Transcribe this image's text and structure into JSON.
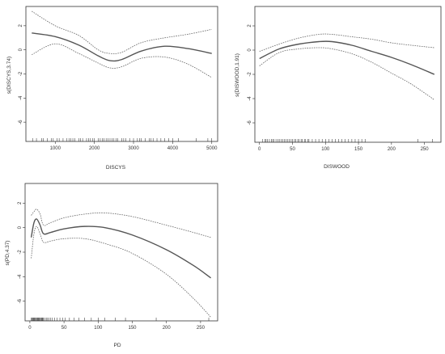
{
  "chart_data": [
    {
      "type": "line",
      "xlabel": "DISCYS",
      "ylabel": "s(DISCYS,3.74)",
      "xlim": [
        250,
        5150
      ],
      "ylim": [
        -7.6,
        3.6
      ],
      "xticks": [
        1000,
        2000,
        3000,
        4000,
        5000
      ],
      "yticks": [
        2,
        0,
        -2,
        -4,
        -6
      ],
      "series": [
        {
          "style": "solid",
          "x": [
            400,
            1000,
            1600,
            2100,
            2400,
            2700,
            3200,
            3800,
            4400,
            5000
          ],
          "y": [
            1.4,
            1.1,
            0.4,
            -0.5,
            -0.9,
            -0.8,
            -0.1,
            0.3,
            0.1,
            -0.3
          ]
        },
        {
          "style": "dashed",
          "x": [
            400,
            1000,
            1600,
            2100,
            2400,
            2700,
            3200,
            3800,
            4400,
            5000
          ],
          "y": [
            3.2,
            2.0,
            1.2,
            0.0,
            -0.3,
            -0.2,
            0.6,
            1.0,
            1.3,
            1.7
          ]
        },
        {
          "style": "dashed",
          "x": [
            400,
            1000,
            1600,
            2100,
            2400,
            2700,
            3200,
            3800,
            4400,
            5000
          ],
          "y": [
            -0.4,
            0.5,
            -0.3,
            -1.1,
            -1.5,
            -1.4,
            -0.7,
            -0.6,
            -1.2,
            -2.3
          ]
        }
      ],
      "rug": [
        420,
        520,
        650,
        700,
        800,
        900,
        950,
        1050,
        1100,
        1200,
        1300,
        1350,
        1400,
        1450,
        1500,
        1600,
        1650,
        1700,
        1800,
        1850,
        1900,
        1950,
        2000,
        2100,
        2150,
        2200,
        2250,
        2300,
        2350,
        2400,
        2450,
        2500,
        2550,
        2600,
        2700,
        2750,
        2800,
        2900,
        3000,
        3100,
        3150,
        3200,
        3300,
        3400,
        3450,
        3500,
        3600,
        3700,
        3800,
        3900,
        4000,
        4150,
        4600,
        4900,
        5000
      ]
    },
    {
      "type": "line",
      "xlabel": "DISWOOD",
      "ylabel": "s(DISWOOD,1.91)",
      "xlim": [
        -7,
        275
      ],
      "ylim": [
        -7.6,
        3.6
      ],
      "xticks": [
        0,
        50,
        100,
        150,
        200,
        250
      ],
      "yticks": [
        2,
        0,
        -2,
        -4,
        -6
      ],
      "series": [
        {
          "style": "solid",
          "x": [
            0,
            30,
            60,
            90,
            110,
            140,
            170,
            200,
            230,
            265
          ],
          "y": [
            -0.7,
            0.1,
            0.5,
            0.7,
            0.7,
            0.4,
            -0.1,
            -0.6,
            -1.2,
            -2.0
          ]
        },
        {
          "style": "dashed",
          "x": [
            0,
            30,
            60,
            90,
            110,
            140,
            170,
            200,
            230,
            265
          ],
          "y": [
            -0.1,
            0.5,
            1.0,
            1.3,
            1.3,
            1.1,
            0.9,
            0.6,
            0.4,
            0.2
          ]
        },
        {
          "style": "dashed",
          "x": [
            0,
            30,
            60,
            90,
            110,
            140,
            170,
            200,
            230,
            265
          ],
          "y": [
            -1.3,
            -0.2,
            0.1,
            0.2,
            0.1,
            -0.3,
            -1.0,
            -1.9,
            -2.8,
            -4.1
          ]
        }
      ],
      "rug": [
        5,
        8,
        10,
        12,
        15,
        18,
        20,
        22,
        25,
        28,
        30,
        33,
        35,
        38,
        40,
        43,
        45,
        48,
        50,
        53,
        55,
        58,
        60,
        63,
        65,
        68,
        70,
        73,
        75,
        80,
        85,
        90,
        95,
        100,
        105,
        110,
        115,
        120,
        125,
        130,
        135,
        140,
        145,
        150,
        155,
        160,
        240,
        262
      ]
    },
    {
      "type": "line",
      "xlabel": "PD",
      "ylabel": "s(PD,4.37)",
      "xlim": [
        -7,
        275
      ],
      "ylim": [
        -7.6,
        3.6
      ],
      "xticks": [
        0,
        50,
        100,
        150,
        200,
        250
      ],
      "yticks": [
        2,
        0,
        -2,
        -4,
        -6
      ],
      "series": [
        {
          "style": "solid",
          "x": [
            2,
            6,
            10,
            15,
            20,
            30,
            50,
            80,
            110,
            150,
            200,
            240,
            265
          ],
          "y": [
            -0.8,
            0.4,
            0.7,
            0.2,
            -0.5,
            -0.4,
            -0.1,
            0.1,
            0.0,
            -0.6,
            -1.8,
            -3.1,
            -4.1
          ]
        },
        {
          "style": "dashed",
          "x": [
            2,
            6,
            10,
            15,
            20,
            30,
            50,
            80,
            110,
            150,
            200,
            240,
            265
          ],
          "y": [
            1.0,
            1.3,
            1.5,
            1.1,
            0.2,
            0.4,
            0.8,
            1.1,
            1.2,
            0.9,
            0.2,
            -0.4,
            -0.8
          ]
        },
        {
          "style": "dashed",
          "x": [
            2,
            6,
            10,
            15,
            20,
            30,
            50,
            80,
            110,
            150,
            200,
            240,
            265
          ],
          "y": [
            -2.5,
            -0.5,
            0.1,
            -0.5,
            -1.2,
            -1.1,
            -0.9,
            -0.9,
            -1.3,
            -2.1,
            -3.8,
            -5.8,
            -7.3
          ]
        }
      ],
      "rug": [
        2,
        3,
        4,
        5,
        6,
        7,
        8,
        9,
        10,
        11,
        12,
        13,
        14,
        15,
        16,
        17,
        18,
        19,
        20,
        22,
        24,
        26,
        28,
        30,
        33,
        36,
        40,
        44,
        48,
        52,
        58,
        65,
        72,
        80,
        90,
        100,
        110,
        125,
        140,
        185,
        262
      ]
    }
  ]
}
